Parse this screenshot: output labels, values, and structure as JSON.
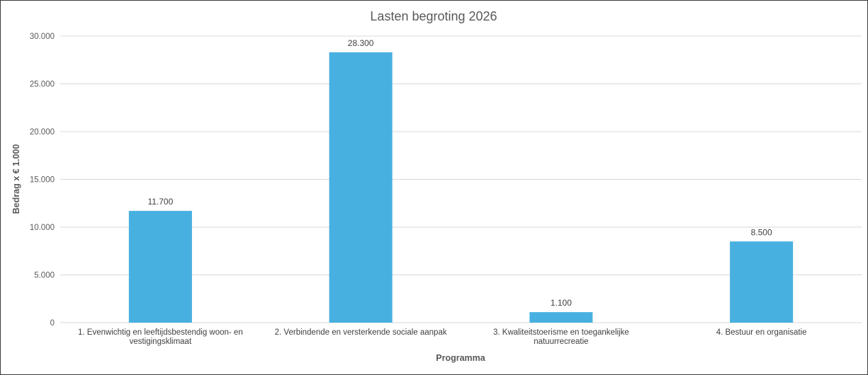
{
  "chart_data": {
    "type": "bar",
    "title": "Lasten begroting 2026",
    "xlabel": "Programma",
    "ylabel": "Bedrag x € 1.000",
    "categories": [
      [
        "1. Evenwichtig en leeftijdsbestendig woon- en",
        "vestigingsklimaat"
      ],
      [
        "2. Verbindende en versterkende sociale aanpak"
      ],
      [
        "3. Kwaliteitstoerisme en toegankelijke",
        "natuurrecreatie"
      ],
      [
        "4. Bestuur en organisatie"
      ]
    ],
    "values": [
      11700,
      28300,
      1100,
      8500
    ],
    "value_labels": [
      "11.700",
      "28.300",
      "1.100",
      "8.500"
    ],
    "ylim": [
      0,
      30000
    ],
    "yticks": [
      0,
      5000,
      10000,
      15000,
      20000,
      25000,
      30000
    ],
    "ytick_labels": [
      "0",
      "5.000",
      "10.000",
      "15.000",
      "20.000",
      "25.000",
      "30.000"
    ],
    "bar_color": "#47b0e0",
    "grid": true,
    "legend": "none"
  }
}
